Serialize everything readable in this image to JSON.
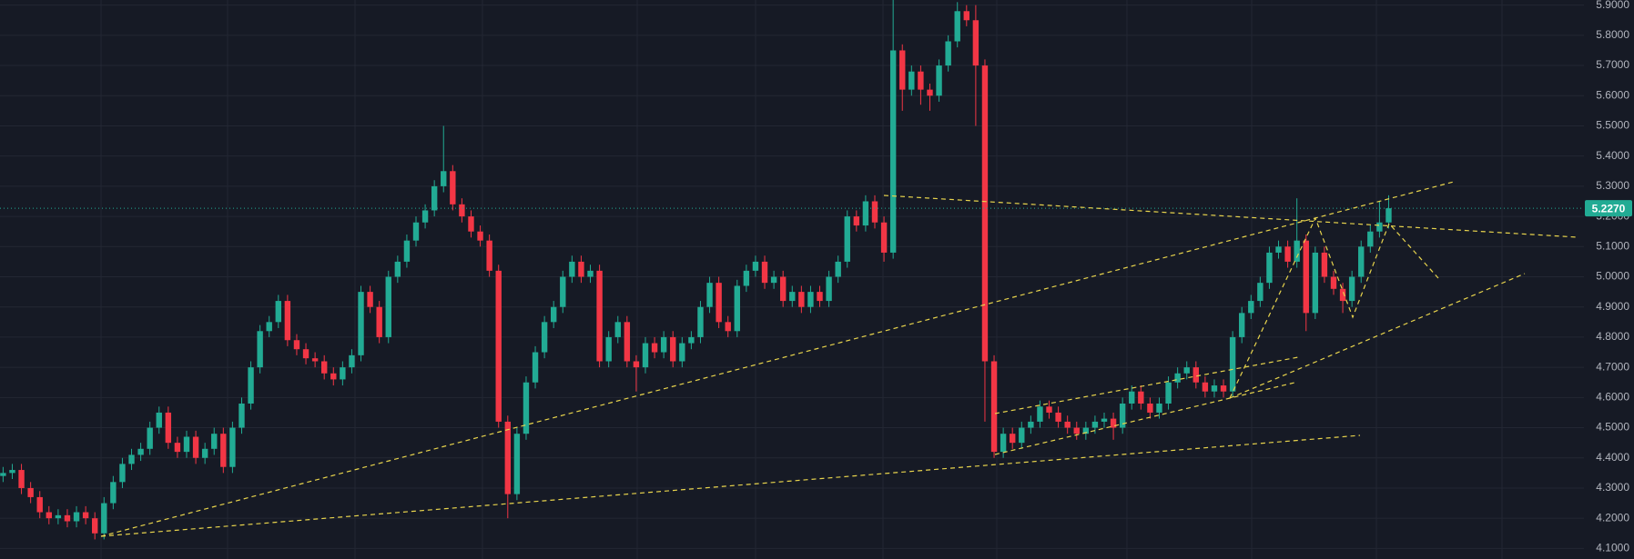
{
  "chart_data": {
    "type": "candlestick",
    "open": [
      4.34,
      4.35,
      4.36,
      4.3,
      4.27,
      4.22,
      4.2,
      4.21,
      4.19,
      4.22,
      4.2,
      4.15,
      4.25,
      4.32,
      4.38,
      4.41,
      4.43,
      4.5,
      4.55,
      4.45,
      4.42,
      4.47,
      4.4,
      4.43,
      4.48,
      4.37,
      4.5,
      4.58,
      4.7,
      4.82,
      4.85,
      4.92,
      4.79,
      4.76,
      4.73,
      4.72,
      4.68,
      4.66,
      4.7,
      4.74,
      4.95,
      4.9,
      4.8,
      5.0,
      5.05,
      5.12,
      5.18,
      5.22,
      5.3,
      5.35,
      5.24,
      5.2,
      5.15,
      5.12,
      5.02,
      4.52,
      4.28,
      4.48,
      4.65,
      4.75,
      4.85,
      4.9,
      5.0,
      5.05,
      5.0,
      5.02,
      4.72,
      4.8,
      4.85,
      4.72,
      4.7,
      4.78,
      4.75,
      4.8,
      4.72,
      4.78,
      4.8,
      4.9,
      4.98,
      4.85,
      4.82,
      4.97,
      5.02,
      5.05,
      4.98,
      5.0,
      4.92,
      4.95,
      4.9,
      4.95,
      4.92,
      5.0,
      5.05,
      5.2,
      5.17,
      5.25,
      5.18,
      5.08,
      5.75,
      5.62,
      5.68,
      5.62,
      5.6,
      5.7,
      5.78,
      5.88,
      5.85,
      5.7,
      4.72,
      4.42,
      4.48,
      4.45,
      4.5,
      4.52,
      4.57,
      4.55,
      4.52,
      4.5,
      4.48,
      4.5,
      4.52,
      4.53,
      4.5,
      4.58,
      4.62,
      4.58,
      4.55,
      4.58,
      4.65,
      4.68,
      4.7,
      4.65,
      4.62,
      4.64,
      4.62,
      4.8,
      4.88,
      4.92,
      4.98,
      5.08,
      5.1,
      5.05,
      5.12,
      4.88,
      5.08,
      5.0,
      4.96,
      4.92,
      5.0,
      5.1,
      5.15,
      5.18
    ],
    "high": [
      4.37,
      4.38,
      4.38,
      4.32,
      4.29,
      4.24,
      4.23,
      4.23,
      4.24,
      4.24,
      4.22,
      4.27,
      4.34,
      4.4,
      4.43,
      4.45,
      4.52,
      4.57,
      4.57,
      4.47,
      4.49,
      4.49,
      4.45,
      4.5,
      4.5,
      4.52,
      4.6,
      4.72,
      4.84,
      4.87,
      4.94,
      4.94,
      4.81,
      4.78,
      4.75,
      4.74,
      4.7,
      4.72,
      4.76,
      4.97,
      4.97,
      4.92,
      5.02,
      5.07,
      5.14,
      5.2,
      5.24,
      5.32,
      5.5,
      5.37,
      5.26,
      5.22,
      5.17,
      5.14,
      5.04,
      4.54,
      4.5,
      4.67,
      4.77,
      4.87,
      4.92,
      5.02,
      5.07,
      5.07,
      5.04,
      5.04,
      4.82,
      4.87,
      4.87,
      4.74,
      4.8,
      4.8,
      4.82,
      4.82,
      4.8,
      4.82,
      4.92,
      5.0,
      5.0,
      4.87,
      4.99,
      5.04,
      5.07,
      5.07,
      5.02,
      5.02,
      4.97,
      4.97,
      4.97,
      4.97,
      5.02,
      5.07,
      5.22,
      5.22,
      5.27,
      5.27,
      5.2,
      5.95,
      5.77,
      5.7,
      5.7,
      5.64,
      5.72,
      5.8,
      5.91,
      5.9,
      5.9,
      5.72,
      4.74,
      4.5,
      4.5,
      4.52,
      4.54,
      4.59,
      4.59,
      4.57,
      4.54,
      4.52,
      4.52,
      4.54,
      4.55,
      4.55,
      4.6,
      4.64,
      4.64,
      4.6,
      4.6,
      4.67,
      4.7,
      4.72,
      4.72,
      4.67,
      4.66,
      4.66,
      4.82,
      4.9,
      4.94,
      5.0,
      5.1,
      5.12,
      5.12,
      5.26,
      5.14,
      5.1,
      5.1,
      5.02,
      4.98,
      5.02,
      5.12,
      5.17,
      5.25,
      5.27
    ],
    "low": [
      4.32,
      4.33,
      4.28,
      4.25,
      4.2,
      4.18,
      4.18,
      4.17,
      4.17,
      4.18,
      4.13,
      4.13,
      4.23,
      4.3,
      4.36,
      4.39,
      4.41,
      4.48,
      4.43,
      4.4,
      4.4,
      4.38,
      4.38,
      4.41,
      4.35,
      4.35,
      4.48,
      4.56,
      4.68,
      4.8,
      4.83,
      4.77,
      4.74,
      4.71,
      4.7,
      4.66,
      4.64,
      4.64,
      4.68,
      4.72,
      4.88,
      4.78,
      4.78,
      4.98,
      5.03,
      5.1,
      5.16,
      5.2,
      5.28,
      5.22,
      5.18,
      5.13,
      5.1,
      5.0,
      4.5,
      4.2,
      4.26,
      4.46,
      4.63,
      4.73,
      4.83,
      4.88,
      4.98,
      4.98,
      4.98,
      4.7,
      4.7,
      4.78,
      4.7,
      4.62,
      4.68,
      4.73,
      4.73,
      4.7,
      4.7,
      4.76,
      4.78,
      4.88,
      4.83,
      4.8,
      4.8,
      4.95,
      5.0,
      4.96,
      4.96,
      4.9,
      4.9,
      4.88,
      4.88,
      4.9,
      4.9,
      4.98,
      5.03,
      5.15,
      5.15,
      5.16,
      5.05,
      5.06,
      5.55,
      5.6,
      5.57,
      5.55,
      5.58,
      5.68,
      5.76,
      5.83,
      5.5,
      4.52,
      4.4,
      4.4,
      4.43,
      4.43,
      4.48,
      4.5,
      4.53,
      4.5,
      4.48,
      4.46,
      4.46,
      4.48,
      4.5,
      4.46,
      4.48,
      4.56,
      4.56,
      4.53,
      4.53,
      4.56,
      4.63,
      4.66,
      4.63,
      4.6,
      4.6,
      4.6,
      4.6,
      4.78,
      4.86,
      4.9,
      4.96,
      5.06,
      5.03,
      5.03,
      4.82,
      4.86,
      4.98,
      4.94,
      4.88,
      4.9,
      4.98,
      5.08,
      5.13,
      5.16
    ],
    "close": [
      4.35,
      4.36,
      4.3,
      4.27,
      4.22,
      4.2,
      4.21,
      4.19,
      4.22,
      4.2,
      4.15,
      4.25,
      4.32,
      4.38,
      4.41,
      4.43,
      4.5,
      4.55,
      4.45,
      4.42,
      4.47,
      4.4,
      4.43,
      4.48,
      4.37,
      4.5,
      4.58,
      4.7,
      4.82,
      4.85,
      4.92,
      4.79,
      4.76,
      4.73,
      4.72,
      4.68,
      4.66,
      4.7,
      4.74,
      4.95,
      4.9,
      4.8,
      5.0,
      5.05,
      5.12,
      5.18,
      5.22,
      5.3,
      5.35,
      5.24,
      5.2,
      5.15,
      5.12,
      5.02,
      4.52,
      4.28,
      4.48,
      4.65,
      4.75,
      4.85,
      4.9,
      5.0,
      5.05,
      5.0,
      5.02,
      4.72,
      4.8,
      4.85,
      4.72,
      4.7,
      4.78,
      4.75,
      4.8,
      4.72,
      4.78,
      4.8,
      4.9,
      4.98,
      4.85,
      4.82,
      4.97,
      5.02,
      5.05,
      4.98,
      5.0,
      4.92,
      4.95,
      4.9,
      4.95,
      4.92,
      5.0,
      5.05,
      5.2,
      5.17,
      5.25,
      5.18,
      5.08,
      5.75,
      5.62,
      5.68,
      5.62,
      5.6,
      5.7,
      5.78,
      5.88,
      5.85,
      5.7,
      4.72,
      4.42,
      4.48,
      4.45,
      4.5,
      4.52,
      4.57,
      4.55,
      4.52,
      4.5,
      4.48,
      4.5,
      4.52,
      4.53,
      4.5,
      4.58,
      4.62,
      4.58,
      4.55,
      4.58,
      4.65,
      4.68,
      4.7,
      4.65,
      4.62,
      4.64,
      4.62,
      4.8,
      4.88,
      4.92,
      4.98,
      5.08,
      5.1,
      5.05,
      5.12,
      4.88,
      5.08,
      5.0,
      4.96,
      4.92,
      5.0,
      5.1,
      5.15,
      5.18,
      5.227
    ],
    "up_color": "#22ab94",
    "down_color": "#f23645",
    "ylim": [
      4.065,
      5.917
    ],
    "yticks": [
      {
        "value": 4.1,
        "label": "4.1000"
      },
      {
        "value": 4.2,
        "label": "4.2000"
      },
      {
        "value": 4.3,
        "label": "4.3000"
      },
      {
        "value": 4.4,
        "label": "4.4000"
      },
      {
        "value": 4.5,
        "label": "4.5000"
      },
      {
        "value": 4.6,
        "label": "4.6000"
      },
      {
        "value": 4.7,
        "label": "4.7000"
      },
      {
        "value": 4.8,
        "label": "4.8000"
      },
      {
        "value": 4.9,
        "label": "4.9000"
      },
      {
        "value": 5.0,
        "label": "5.0000"
      },
      {
        "value": 5.1,
        "label": "5.1000"
      },
      {
        "value": 5.2,
        "label": "5.2000"
      },
      {
        "value": 5.3,
        "label": "5.3000"
      },
      {
        "value": 5.4,
        "label": "5.4000"
      },
      {
        "value": 5.5,
        "label": "5.5000"
      },
      {
        "value": 5.6,
        "label": "5.6000"
      },
      {
        "value": 5.7,
        "label": "5.7000"
      },
      {
        "value": 5.8,
        "label": "5.8000"
      },
      {
        "value": 5.9,
        "label": "5.9000"
      }
    ],
    "grid": true,
    "last_price_label": "5.2270"
  }
}
